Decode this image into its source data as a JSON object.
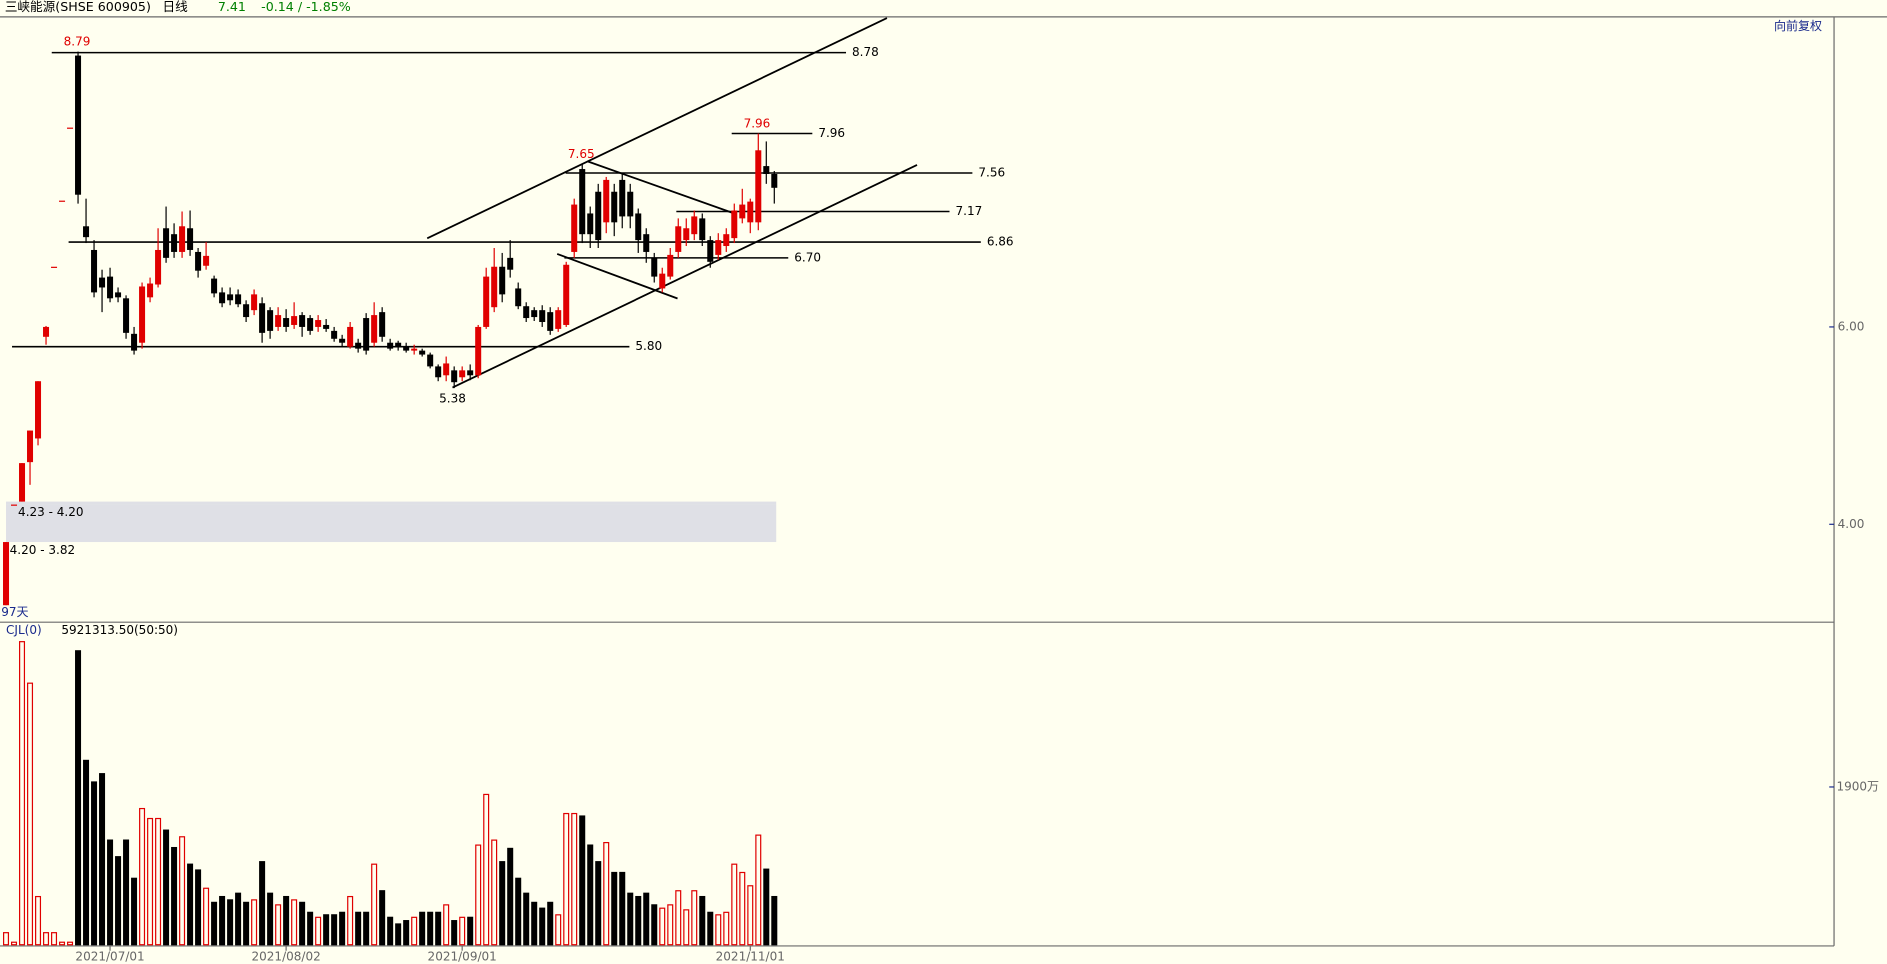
{
  "header": {
    "title": "三峡能源(SHSE 600905)",
    "period": "日线",
    "price": 7.41,
    "change": "-0.14 / -1.85%",
    "adjust": "向前复权"
  },
  "chart_data": [
    {
      "type": "candlestick",
      "days_label": "97天",
      "ylim": [
        3.02,
        9.13
      ],
      "yticks": [
        {
          "value": 6,
          "label": "6.00"
        },
        {
          "value": 4,
          "label": "4.00"
        }
      ],
      "up_color": "#e00000",
      "down_color": "#000000",
      "open": [
        3.18,
        4.2,
        4.23,
        4.63,
        4.87,
        5.9,
        6.61,
        7.28,
        8.02,
        8.75,
        7.02,
        6.78,
        6.5,
        6.51,
        6.35,
        6.29,
        5.93,
        5.84,
        6.3,
        6.43,
        7.0,
        6.94,
        6.76,
        7.0,
        6.76,
        6.62,
        6.49,
        6.35,
        6.33,
        6.33,
        6.23,
        6.17,
        6.24,
        6.17,
        6.0,
        6.09,
        6.02,
        6.12,
        6.09,
        6.0,
        6.02,
        5.96,
        5.88,
        5.8,
        5.84,
        6.09,
        5.84,
        6.15,
        5.84,
        5.84,
        5.8,
        5.76,
        5.76,
        5.72,
        5.6,
        5.51,
        5.56,
        5.49,
        5.56,
        5.51,
        6.0,
        6.2,
        6.61,
        6.7,
        6.39,
        6.21,
        6.17,
        6.17,
        6.15,
        5.98,
        6.02,
        6.76,
        7.6,
        7.15,
        7.37,
        7.06,
        7.37,
        7.49,
        7.37,
        7.15,
        6.94,
        6.7,
        6.39,
        6.51,
        6.76,
        6.88,
        6.94,
        7.1,
        6.88,
        6.73,
        6.82,
        6.9,
        7.1,
        7.06,
        7.06,
        7.63,
        7.55
      ],
      "high": [
        3.82,
        4.2,
        4.62,
        4.95,
        5.45,
        6.01,
        6.61,
        7.28,
        8.02,
        8.79,
        7.3,
        6.88,
        6.58,
        6.6,
        6.4,
        6.32,
        6.0,
        6.45,
        6.5,
        7.0,
        7.22,
        7.05,
        7.17,
        7.18,
        6.8,
        6.86,
        6.52,
        6.4,
        6.4,
        6.38,
        6.27,
        6.38,
        6.3,
        6.2,
        6.2,
        6.18,
        6.25,
        6.15,
        6.12,
        6.12,
        6.08,
        6.0,
        5.92,
        6.05,
        5.88,
        6.14,
        6.25,
        6.2,
        5.88,
        5.86,
        5.84,
        5.82,
        5.78,
        5.74,
        5.62,
        5.7,
        5.6,
        5.6,
        5.62,
        6.02,
        6.6,
        6.8,
        6.75,
        6.88,
        6.45,
        6.25,
        6.2,
        6.22,
        6.2,
        6.2,
        6.66,
        7.3,
        7.65,
        7.22,
        7.45,
        7.52,
        7.45,
        7.55,
        7.45,
        7.2,
        7.0,
        6.75,
        6.6,
        6.8,
        7.1,
        7.1,
        7.18,
        7.15,
        6.92,
        6.95,
        7.0,
        7.25,
        7.4,
        7.3,
        7.96,
        7.88,
        7.58
      ],
      "low": [
        3.18,
        4.2,
        4.23,
        4.4,
        4.8,
        5.82,
        6.61,
        7.28,
        8.02,
        7.25,
        6.85,
        6.3,
        6.15,
        6.25,
        6.25,
        5.88,
        5.72,
        5.78,
        6.25,
        6.4,
        6.65,
        6.7,
        6.7,
        6.72,
        6.5,
        6.58,
        6.3,
        6.2,
        6.22,
        6.2,
        6.05,
        6.12,
        5.84,
        5.88,
        5.96,
        5.95,
        5.98,
        5.9,
        5.92,
        5.95,
        5.95,
        5.85,
        5.8,
        5.78,
        5.74,
        5.72,
        5.8,
        5.85,
        5.76,
        5.76,
        5.74,
        5.72,
        5.7,
        5.58,
        5.45,
        5.45,
        5.38,
        5.45,
        5.46,
        5.48,
        5.98,
        6.15,
        6.25,
        6.5,
        6.18,
        6.05,
        6.06,
        6.0,
        5.92,
        5.95,
        6.0,
        6.7,
        6.85,
        6.8,
        6.8,
        6.95,
        6.92,
        7.0,
        7.0,
        6.75,
        6.65,
        6.45,
        6.35,
        6.48,
        6.7,
        6.82,
        6.88,
        6.82,
        6.6,
        6.68,
        6.76,
        6.85,
        7.05,
        6.95,
        6.98,
        7.45,
        7.25
      ],
      "close": [
        3.82,
        4.2,
        4.62,
        4.95,
        5.45,
        6.0,
        6.61,
        7.28,
        8.02,
        7.34,
        6.91,
        6.35,
        6.4,
        6.29,
        6.3,
        5.94,
        5.76,
        6.41,
        6.44,
        6.78,
        6.7,
        6.76,
        7.02,
        6.78,
        6.57,
        6.72,
        6.34,
        6.24,
        6.27,
        6.23,
        6.1,
        6.33,
        5.94,
        5.96,
        6.12,
        6.0,
        6.11,
        6.0,
        5.96,
        6.07,
        5.98,
        5.88,
        5.84,
        6.0,
        5.78,
        5.76,
        6.12,
        5.9,
        5.78,
        5.8,
        5.76,
        5.78,
        5.72,
        5.6,
        5.49,
        5.63,
        5.44,
        5.56,
        5.51,
        6.0,
        6.51,
        6.61,
        6.33,
        6.58,
        6.21,
        6.09,
        6.1,
        6.05,
        5.96,
        6.17,
        6.63,
        7.24,
        6.94,
        6.94,
        6.88,
        7.49,
        7.06,
        7.12,
        7.12,
        6.88,
        6.76,
        6.51,
        6.54,
        6.73,
        7.02,
        7.0,
        7.12,
        6.88,
        6.66,
        6.88,
        6.94,
        7.18,
        7.24,
        7.27,
        7.79,
        7.55,
        7.41
      ],
      "levels": [
        8.78,
        7.96,
        7.56,
        7.17,
        6.86,
        {
          "value": 6.7,
          "label": "6.70"
        },
        {
          "value": 5.8,
          "label": "5.80"
        }
      ],
      "high_labels": [
        8.79,
        7.65,
        7.96
      ],
      "low_labels": [
        5.38
      ],
      "gap_zones": [
        {
          "label": "4.23 - 4.20",
          "high": 4.23,
          "low": 4.2
        },
        {
          "label": "4.20 - 3.82",
          "high": 4.2,
          "low": 3.82
        }
      ]
    },
    {
      "type": "volume",
      "title": "CJL(0)",
      "subtitle": "5921313.50(50:50)",
      "ylim": [
        0,
        3870
      ],
      "yticks": [
        {
          "value": 1900,
          "label": "1900万"
        }
      ],
      "categories": [
        null,
        null,
        null,
        null,
        null,
        null,
        null,
        null,
        null,
        null,
        null,
        null,
        null,
        "2021/07/01",
        null,
        null,
        null,
        null,
        null,
        null,
        null,
        null,
        null,
        null,
        null,
        null,
        null,
        null,
        null,
        null,
        null,
        null,
        null,
        null,
        null,
        "2021/08/02",
        null,
        null,
        null,
        null,
        null,
        null,
        null,
        null,
        null,
        null,
        null,
        null,
        null,
        null,
        null,
        null,
        null,
        null,
        null,
        null,
        null,
        "2021/09/01",
        null,
        null,
        null,
        null,
        null,
        null,
        null,
        null,
        null,
        null,
        null,
        null,
        null,
        null,
        null,
        null,
        null,
        null,
        null,
        null,
        null,
        null,
        null,
        null,
        null,
        null,
        null,
        null,
        null,
        null,
        null,
        null,
        null,
        null,
        null,
        "2021/11/01",
        null,
        null,
        null
      ],
      "values": [
        145,
        30,
        3650,
        3150,
        580,
        145,
        145,
        30,
        30,
        3540,
        2220,
        1960,
        2060,
        1260,
        1060,
        1260,
        800,
        1640,
        1520,
        1520,
        1380,
        1170,
        1300,
        970,
        900,
        680,
        510,
        580,
        540,
        620,
        510,
        540,
        1000,
        620,
        480,
        580,
        540,
        510,
        390,
        330,
        360,
        360,
        390,
        580,
        390,
        390,
        970,
        650,
        330,
        250,
        290,
        330,
        390,
        390,
        390,
        480,
        290,
        330,
        330,
        1200,
        1810,
        1260,
        1000,
        1160,
        800,
        620,
        510,
        440,
        510,
        360,
        1580,
        1580,
        1550,
        1200,
        1000,
        1230,
        870,
        870,
        620,
        580,
        620,
        480,
        440,
        480,
        650,
        420,
        650,
        580,
        390,
        360,
        390,
        970,
        870,
        710,
        1320,
        910,
        580
      ]
    }
  ]
}
